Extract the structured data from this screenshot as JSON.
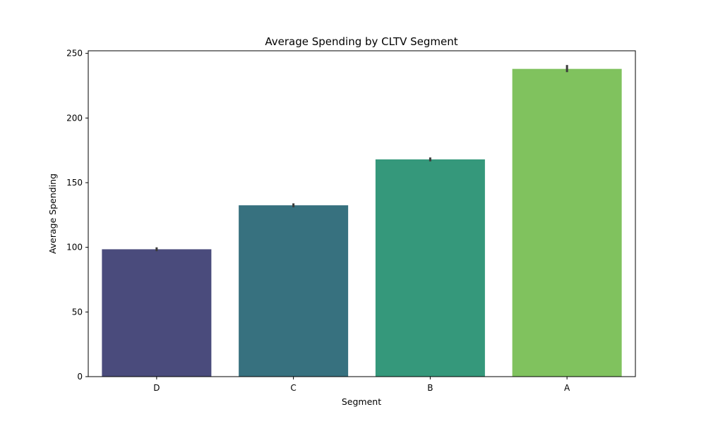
{
  "chart_data": {
    "type": "bar",
    "title": "Average Spending by CLTV Segment",
    "xlabel": "Segment",
    "ylabel": "Average Spending",
    "categories": [
      "D",
      "C",
      "B",
      "A"
    ],
    "values": [
      98.5,
      132.5,
      168,
      238
    ],
    "error_bars": [
      {
        "low": 97,
        "high": 100
      },
      {
        "low": 131,
        "high": 134
      },
      {
        "low": 166.5,
        "high": 169.5
      },
      {
        "low": 235.5,
        "high": 241
      }
    ],
    "colors": [
      "#4a4b7c",
      "#37717f",
      "#35987b",
      "#80c25e"
    ],
    "error_bar_color": "#3b3b3b",
    "ylim": [
      0,
      252
    ],
    "yticks": [
      0,
      50,
      100,
      150,
      200,
      250
    ],
    "grid": false,
    "legend": "none"
  }
}
